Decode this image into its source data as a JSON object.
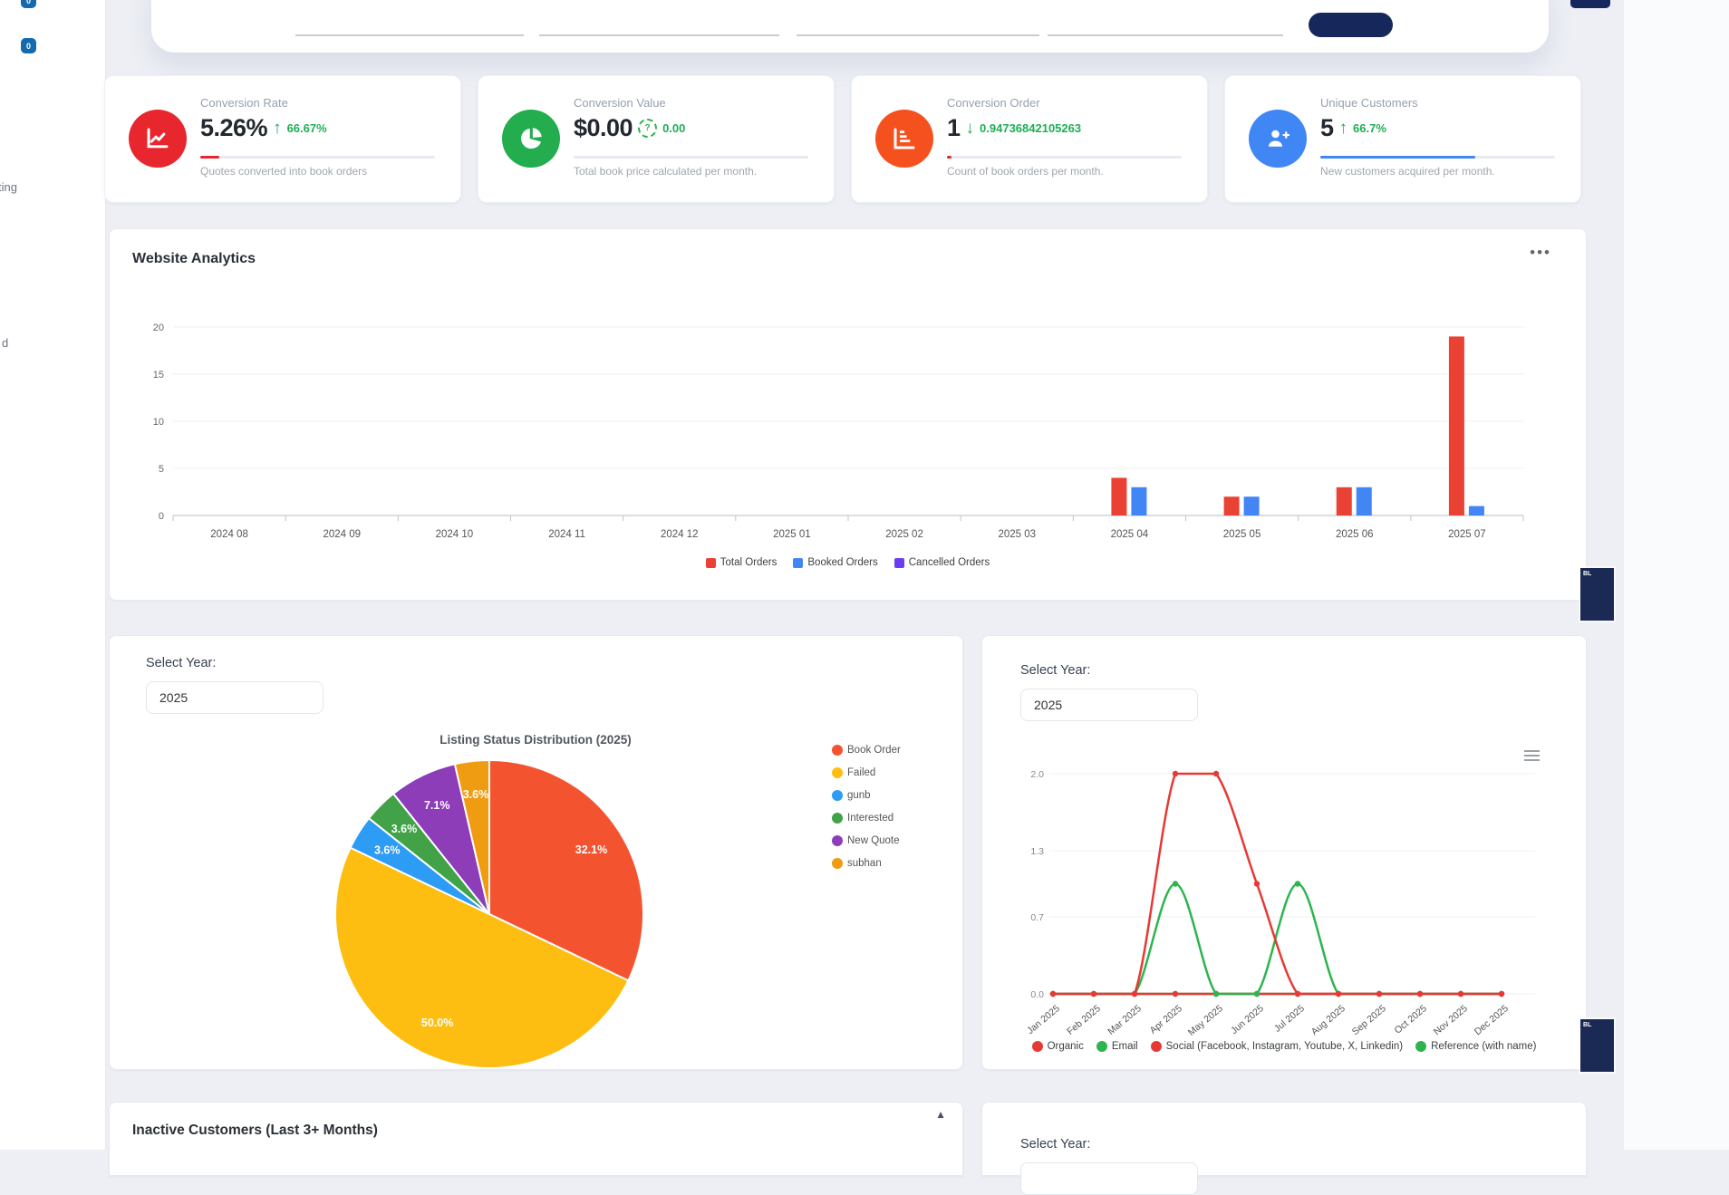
{
  "sidebar": {
    "badge_top_label": "0",
    "badge_label": "0",
    "fragment_1": "ting",
    "fragment_2": "d"
  },
  "kpi_cards": [
    {
      "title": "Conversion Rate",
      "value": "5.26%",
      "trend_icon": "arrow-up",
      "trend_value": "66.67%",
      "caption": "Quotes converted into book orders",
      "icon": "line-chart-icon",
      "icon_bg": "#e8262d",
      "progress_pct": 8,
      "progress_color": "#e8262d"
    },
    {
      "title": "Conversion Value",
      "value": "$0.00",
      "trend_icon": "dashed-circle-question",
      "trend_value": "0.00",
      "caption": "Total book price calculated per month.",
      "icon": "pie-chart-icon",
      "icon_bg": "#23ad4e",
      "progress_pct": 0,
      "progress_color": "#23ad4e"
    },
    {
      "title": "Conversion Order",
      "value": "1",
      "trend_icon": "arrow-down",
      "trend_value": "0.94736842105263",
      "caption": "Count of book orders per month.",
      "icon": "bar-chart-icon",
      "icon_bg": "#f4511e",
      "progress_pct": 2,
      "progress_color": "#e8262d"
    },
    {
      "title": "Unique Customers",
      "value": "5",
      "trend_icon": "arrow-up",
      "trend_value": "66.7%",
      "caption": "New customers acquired per month.",
      "icon": "user-plus-icon",
      "icon_bg": "#4186f5",
      "progress_pct": 66,
      "progress_color": "#4186f5"
    }
  ],
  "analytics_panel": {
    "title": "Website Analytics",
    "menu_icon_label": "•••"
  },
  "pie_panel": {
    "select_year_label": "Select Year:",
    "year_value": "2025"
  },
  "line_panel": {
    "select_year_label": "Select Year:",
    "year_value": "2025"
  },
  "inactive_panel": {
    "title": "Inactive Customers (Last 3+ Months)",
    "collapse_icon": "▲"
  },
  "bottom_right_panel": {
    "select_year_label": "Select Year:"
  },
  "floating_buttons": {
    "label": "BL"
  },
  "chart_data": [
    {
      "id": "website_analytics",
      "type": "bar",
      "title": "Website Analytics",
      "categories": [
        "2024 08",
        "2024 09",
        "2024 10",
        "2024 11",
        "2024 12",
        "2025 01",
        "2025 02",
        "2025 03",
        "2025 04",
        "2025 05",
        "2025 06",
        "2025 07"
      ],
      "series": [
        {
          "name": "Total Orders",
          "color": "#e94235",
          "values": [
            0,
            0,
            0,
            0,
            0,
            0,
            0,
            0,
            4,
            2,
            3,
            19
          ]
        },
        {
          "name": "Booked Orders",
          "color": "#4285f4",
          "values": [
            0,
            0,
            0,
            0,
            0,
            0,
            0,
            0,
            3,
            2,
            3,
            1
          ]
        },
        {
          "name": "Cancelled Orders",
          "color": "#6c3ef0",
          "values": [
            0,
            0,
            0,
            0,
            0,
            0,
            0,
            0,
            0,
            0,
            0,
            0
          ]
        }
      ],
      "ylim": [
        0,
        20
      ],
      "yticks": [
        0,
        5,
        10,
        15,
        20
      ],
      "grid": true,
      "legend_position": "bottom"
    },
    {
      "id": "listing_status",
      "type": "pie",
      "title": "Listing Status Distribution (2025)",
      "slices": [
        {
          "label": "Book Order",
          "pct": 32.1,
          "color": "#f45330",
          "data_label": "32.1%"
        },
        {
          "label": "Failed",
          "pct": 50.0,
          "color": "#fdbe11",
          "data_label": "50.0%"
        },
        {
          "label": "gunb",
          "pct": 3.6,
          "color": "#2d9cf4",
          "data_label": "3.6%"
        },
        {
          "label": "Interested",
          "pct": 3.6,
          "color": "#41a248",
          "data_label": "3.6%"
        },
        {
          "label": "New Quote",
          "pct": 7.1,
          "color": "#8d3db8",
          "data_label": "7.1%"
        },
        {
          "label": "subhan",
          "pct": 3.6,
          "color": "#f09c13",
          "data_label": "3.6%"
        }
      ],
      "legend_position": "right"
    },
    {
      "id": "customer_sources",
      "type": "line",
      "x": [
        "Jan 2025",
        "Feb 2025",
        "Mar 2025",
        "Apr 2025",
        "May 2025",
        "Jun 2025",
        "Jul 2025",
        "Aug 2025",
        "Sep 2025",
        "Oct 2025",
        "Nov 2025",
        "Dec 2025"
      ],
      "yticks": [
        0.0,
        0.7,
        1.3,
        2.0
      ],
      "ylim": [
        0,
        2
      ],
      "grid": true,
      "legend_position": "bottom",
      "series": [
        {
          "name": "Reference (with name)",
          "color": "#2eb44f",
          "values": [
            0,
            0,
            0,
            0,
            0,
            0,
            0,
            0,
            0,
            0,
            0,
            0
          ]
        },
        {
          "name": "Social (Facebook, Instagram, Youtube, X, Linkedin)",
          "color": "#e53935",
          "values": [
            0,
            0,
            0,
            0,
            0,
            0,
            0,
            0,
            0,
            0,
            0,
            0
          ]
        },
        {
          "name": "Email",
          "color": "#2eb44f",
          "values": [
            0,
            0,
            0,
            1,
            0,
            0,
            1,
            0,
            0,
            0,
            0,
            0
          ]
        },
        {
          "name": "Organic",
          "color": "#e53935",
          "values": [
            0,
            0,
            0,
            2,
            2,
            1,
            0,
            0,
            0,
            0,
            0,
            0
          ]
        }
      ],
      "legend_order": [
        {
          "name": "Organic",
          "color": "#e53935"
        },
        {
          "name": "Email",
          "color": "#2eb44f"
        },
        {
          "name": "Social (Facebook, Instagram, Youtube, X, Linkedin)",
          "color": "#e53935"
        },
        {
          "name": "Reference (with name)",
          "color": "#2eb44f"
        }
      ]
    }
  ]
}
